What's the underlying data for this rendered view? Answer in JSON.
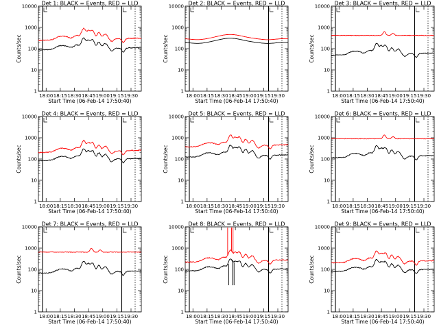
{
  "figure": {
    "panel_title_prefix": "Det ",
    "panel_title_suffix": ": BLACK = Events, RED = LLD",
    "xlabel": "Start Time (06-Feb-14 17:50:40)",
    "ylabel": "Counts/sec",
    "marker_label": "L"
  },
  "colors": {
    "events": "#000000",
    "lld": "#ff0000",
    "axes": "#000000"
  },
  "chart_data": [
    {
      "type": "line",
      "det": "1",
      "title": "Det 1: BLACK = Events, RED = LLD",
      "xlabel": "Start Time (06-Feb-14 17:50:40)",
      "ylabel": "Counts/sec",
      "yscale": "log",
      "ylim": [
        1,
        10000
      ],
      "xlim": [
        0,
        40
      ],
      "x_tick_labels": [
        "18:00",
        "18:15",
        "18:30",
        "18:45",
        "19:00",
        "19:15",
        "19:30"
      ],
      "y_tick_labels": [
        "1",
        "10",
        "100",
        "1000",
        "10000"
      ],
      "vlines_solid": [
        1.6,
        32.4
      ],
      "vlines_dotted": [
        37.6
      ],
      "lld_kind": "flare",
      "lld_base": 280,
      "events_kind": "flare",
      "events_base": 100
    },
    {
      "type": "line",
      "det": "2",
      "title": "Det 2: BLACK = Events, RED = LLD",
      "xlabel": "Start Time (06-Feb-14 17:50:40)",
      "ylabel": "Counts/sec",
      "yscale": "log",
      "ylim": [
        1,
        10000
      ],
      "xlim": [
        0,
        40
      ],
      "x_tick_labels": [
        "18:00",
        "18:15",
        "18:30",
        "18:45",
        "19:00",
        "19:15",
        "19:30"
      ],
      "y_tick_labels": [
        "1",
        "10",
        "100",
        "1000",
        "10000"
      ],
      "vlines_solid": [
        1.6,
        32.4
      ],
      "vlines_dotted": [
        37.6
      ],
      "lld_kind": "smooth",
      "lld_base": 300,
      "events_kind": "smooth",
      "events_base": 200
    },
    {
      "type": "line",
      "det": "3",
      "title": "Det 3: BLACK = Events, RED = LLD",
      "xlabel": "Start Time (06-Feb-14 17:50:40)",
      "ylabel": "Counts/sec",
      "yscale": "log",
      "ylim": [
        1,
        10000
      ],
      "xlim": [
        0,
        40
      ],
      "x_tick_labels": [
        "18:00",
        "18:15",
        "18:30",
        "18:45",
        "19:00",
        "19:15",
        "19:30"
      ],
      "y_tick_labels": [
        "1",
        "10",
        "100",
        "1000",
        "10000"
      ],
      "vlines_solid": [
        1.6,
        32.4
      ],
      "vlines_dotted": [
        37.6
      ],
      "lld_kind": "flat",
      "lld_base": 420,
      "events_kind": "flare",
      "events_base": 55
    },
    {
      "type": "line",
      "det": "4",
      "title": "Det 4: BLACK = Events, RED = LLD",
      "xlabel": "Start Time (06-Feb-14 17:50:40)",
      "ylabel": "Counts/sec",
      "yscale": "log",
      "ylim": [
        1,
        10000
      ],
      "xlim": [
        0,
        40
      ],
      "x_tick_labels": [
        "18:00",
        "18:15",
        "18:30",
        "18:45",
        "19:00",
        "19:15",
        "19:30"
      ],
      "y_tick_labels": [
        "1",
        "10",
        "100",
        "1000",
        "10000"
      ],
      "vlines_solid": [
        1.6,
        32.4
      ],
      "vlines_dotted": [
        37.6
      ],
      "lld_kind": "flare",
      "lld_base": 230,
      "events_kind": "flare",
      "events_base": 95
    },
    {
      "type": "line",
      "det": "5",
      "title": "Det 5: BLACK = Events, RED = LLD",
      "xlabel": "Start Time (06-Feb-14 17:50:40)",
      "ylabel": "Counts/sec",
      "yscale": "log",
      "ylim": [
        1,
        10000
      ],
      "xlim": [
        0,
        40
      ],
      "x_tick_labels": [
        "18:00",
        "18:15",
        "18:30",
        "18:45",
        "19:00",
        "19:15",
        "19:30"
      ],
      "y_tick_labels": [
        "1",
        "10",
        "100",
        "1000",
        "10000"
      ],
      "vlines_solid": [
        1.6,
        32.4
      ],
      "vlines_dotted": [
        37.6
      ],
      "lld_kind": "flare",
      "lld_base": 420,
      "events_kind": "flare",
      "events_base": 140
    },
    {
      "type": "line",
      "det": "6",
      "title": "Det 6: BLACK = Events, RED = LLD",
      "xlabel": "Start Time (06-Feb-14 17:50:40)",
      "ylabel": "Counts/sec",
      "yscale": "log",
      "ylim": [
        1,
        10000
      ],
      "xlim": [
        0,
        40
      ],
      "x_tick_labels": [
        "18:00",
        "18:15",
        "18:30",
        "18:45",
        "19:00",
        "19:15",
        "19:30"
      ],
      "y_tick_labels": [
        "1",
        "10",
        "100",
        "1000",
        "10000"
      ],
      "vlines_solid": [
        1.6,
        32.4
      ],
      "vlines_dotted": [
        37.6
      ],
      "lld_kind": "flat",
      "lld_base": 900,
      "events_kind": "flare",
      "events_base": 130
    },
    {
      "type": "line",
      "det": "7",
      "title": "Det 7: BLACK = Events, RED = LLD",
      "xlabel": "Start Time (06-Feb-14 17:50:40)",
      "ylabel": "Counts/sec",
      "yscale": "log",
      "ylim": [
        1,
        10000
      ],
      "xlim": [
        0,
        40
      ],
      "x_tick_labels": [
        "18:00",
        "18:15",
        "18:30",
        "18:45",
        "19:00",
        "19:15",
        "19:30"
      ],
      "y_tick_labels": [
        "1",
        "10",
        "100",
        "1000",
        "10000"
      ],
      "vlines_solid": [
        1.6,
        32.4
      ],
      "vlines_dotted": [
        37.6
      ],
      "lld_kind": "flat",
      "lld_base": 650,
      "events_kind": "flare",
      "events_base": 75
    },
    {
      "type": "line",
      "det": "8",
      "title": "Det 8: BLACK = Events, RED = LLD",
      "xlabel": "Start Time (06-Feb-14 17:50:40)",
      "ylabel": "Counts/sec",
      "yscale": "log",
      "ylim": [
        1,
        10000
      ],
      "xlim": [
        0,
        40
      ],
      "x_tick_labels": [
        "18:00",
        "18:15",
        "18:30",
        "18:45",
        "19:00",
        "19:15",
        "19:30"
      ],
      "y_tick_labels": [
        "1",
        "10",
        "100",
        "1000",
        "10000"
      ],
      "vlines_solid": [
        1.6,
        32.4
      ],
      "vlines_dotted": [
        37.6
      ],
      "lld_kind": "flare",
      "lld_base": 250,
      "events_kind": "flare",
      "events_base": 95,
      "spikes": [
        16.5,
        18.0,
        18.6
      ]
    },
    {
      "type": "line",
      "det": "9",
      "title": "Det 9: BLACK = Events, RED = LLD",
      "xlabel": "Start Time (06-Feb-14 17:50:40)",
      "ylabel": "Counts/sec",
      "yscale": "log",
      "ylim": [
        1,
        10000
      ],
      "xlim": [
        0,
        40
      ],
      "x_tick_labels": [
        "18:00",
        "18:15",
        "18:30",
        "18:45",
        "19:00",
        "19:15",
        "19:30"
      ],
      "y_tick_labels": [
        "1",
        "10",
        "100",
        "1000",
        "10000"
      ],
      "vlines_solid": [
        1.6,
        32.4
      ],
      "vlines_dotted": [
        37.6
      ],
      "lld_kind": "flare",
      "lld_base": 230,
      "events_kind": "flare",
      "events_base": 90
    }
  ]
}
